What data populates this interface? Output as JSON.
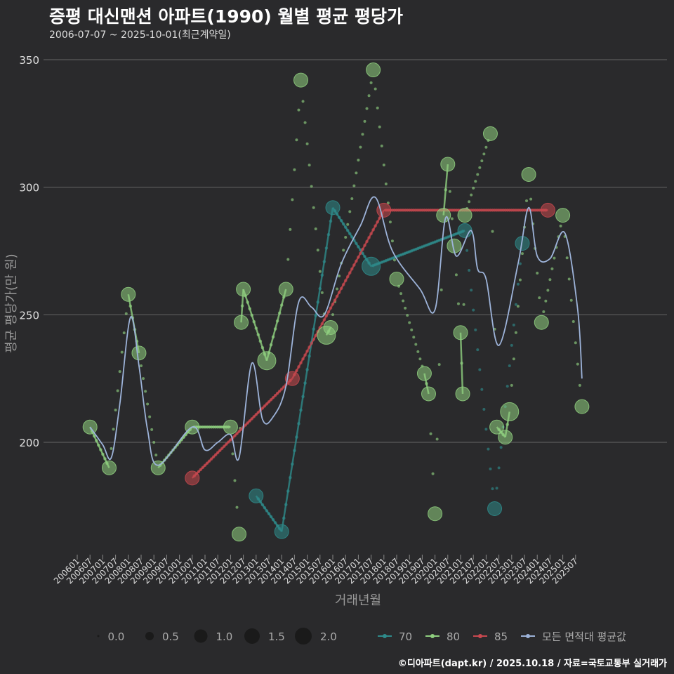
{
  "page": {
    "title": "증평 대신맨션 아파트(1990) 월별 평균 평당가",
    "subtitle": "2006-07-07 ~ 2025-10-01(최근계약일)",
    "caption": "©디아파트(dapt.kr) / 2025.10.18 / 자료=국토교통부 실거래가"
  },
  "colors": {
    "background": "#2a2a2c",
    "grid": "#6b6b6b",
    "area70": "#2e8b8b",
    "area80": "#8fcf7f",
    "area85": "#c8484f",
    "average": "#9db3d9"
  },
  "chart_data": {
    "type": "scatter",
    "title": "증평 대신맨션 아파트(1990) 월별 평균 평당가",
    "xlabel": "거래년월",
    "ylabel": "평균 평당가(만 원)",
    "xlim": [
      "2006-01",
      "2025-12"
    ],
    "ylim": [
      165,
      355
    ],
    "yticks": [
      200,
      250,
      300,
      350
    ],
    "xticks": [
      "200601",
      "200607",
      "200701",
      "200707",
      "200801",
      "200807",
      "200901",
      "200907",
      "201001",
      "201007",
      "201101",
      "201107",
      "201201",
      "201207",
      "201301",
      "201307",
      "201401",
      "201407",
      "201501",
      "201507",
      "201601",
      "201607",
      "201701",
      "201707",
      "201801",
      "201807",
      "201901",
      "201907",
      "202001",
      "202007",
      "202101",
      "202107",
      "202201",
      "202207",
      "202301",
      "202307",
      "202401",
      "202407",
      "202501",
      "202507"
    ],
    "size_legend": {
      "title": "",
      "values": [
        "0.0",
        "0.5",
        "1.0",
        "1.5",
        "2.0"
      ]
    },
    "series": [
      {
        "name": "70",
        "color": "#2e8b8b",
        "points": [
          {
            "x": "2013-01",
            "y": 179,
            "size": 1.0
          },
          {
            "x": "2014-01",
            "y": 165,
            "size": 1.0
          },
          {
            "x": "2016-01",
            "y": 292,
            "size": 1.0
          },
          {
            "x": "2017-07",
            "y": 269,
            "size": 1.5
          },
          {
            "x": "2021-03",
            "y": 283,
            "size": 1.0
          },
          {
            "x": "2022-05",
            "y": 174,
            "size": 1.0
          },
          {
            "x": "2023-06",
            "y": 278,
            "size": 1.0
          }
        ]
      },
      {
        "name": "80",
        "color": "#8fcf7f",
        "points": [
          {
            "x": "2006-07",
            "y": 206,
            "size": 1.0
          },
          {
            "x": "2007-04",
            "y": 190,
            "size": 1.0
          },
          {
            "x": "2008-01",
            "y": 258,
            "size": 1.0
          },
          {
            "x": "2008-06",
            "y": 235,
            "size": 1.0
          },
          {
            "x": "2009-03",
            "y": 190,
            "size": 1.0
          },
          {
            "x": "2010-07",
            "y": 206,
            "size": 1.0
          },
          {
            "x": "2012-01",
            "y": 206,
            "size": 1.0
          },
          {
            "x": "2012-05",
            "y": 164,
            "size": 1.0
          },
          {
            "x": "2012-06",
            "y": 247,
            "size": 1.0
          },
          {
            "x": "2012-07",
            "y": 260,
            "size": 1.0
          },
          {
            "x": "2013-06",
            "y": 232,
            "size": 1.5
          },
          {
            "x": "2014-03",
            "y": 260,
            "size": 1.0
          },
          {
            "x": "2014-10",
            "y": 342,
            "size": 1.0
          },
          {
            "x": "2015-10",
            "y": 242,
            "size": 1.5
          },
          {
            "x": "2015-12",
            "y": 245,
            "size": 1.0
          },
          {
            "x": "2017-08",
            "y": 346,
            "size": 1.0
          },
          {
            "x": "2018-07",
            "y": 264,
            "size": 1.0
          },
          {
            "x": "2019-08",
            "y": 227,
            "size": 1.0
          },
          {
            "x": "2019-10",
            "y": 219,
            "size": 1.0
          },
          {
            "x": "2020-01",
            "y": 172,
            "size": 1.0
          },
          {
            "x": "2020-05",
            "y": 289,
            "size": 1.0
          },
          {
            "x": "2020-07",
            "y": 309,
            "size": 1.0
          },
          {
            "x": "2020-10",
            "y": 277,
            "size": 1.0
          },
          {
            "x": "2021-01",
            "y": 243,
            "size": 1.0
          },
          {
            "x": "2021-02",
            "y": 219,
            "size": 1.0
          },
          {
            "x": "2021-03",
            "y": 289,
            "size": 1.0
          },
          {
            "x": "2022-03",
            "y": 321,
            "size": 1.0
          },
          {
            "x": "2022-06",
            "y": 206,
            "size": 1.0
          },
          {
            "x": "2022-10",
            "y": 202,
            "size": 1.0
          },
          {
            "x": "2022-12",
            "y": 212,
            "size": 1.5
          },
          {
            "x": "2023-09",
            "y": 305,
            "size": 1.0
          },
          {
            "x": "2024-03",
            "y": 247,
            "size": 1.0
          },
          {
            "x": "2025-01",
            "y": 289,
            "size": 1.0
          },
          {
            "x": "2025-10",
            "y": 214,
            "size": 1.0
          }
        ]
      },
      {
        "name": "85",
        "color": "#c8484f",
        "points": [
          {
            "x": "2010-07",
            "y": 186,
            "size": 1.0
          },
          {
            "x": "2014-06",
            "y": 225,
            "size": 1.0
          },
          {
            "x": "2018-01",
            "y": 291,
            "size": 1.0
          },
          {
            "x": "2024-06",
            "y": 291,
            "size": 1.0
          }
        ]
      },
      {
        "name": "모든 면적대 평균값",
        "color": "#9db3d9",
        "line": [
          {
            "x": "2006-07",
            "y": 206
          },
          {
            "x": "2007-01",
            "y": 199
          },
          {
            "x": "2007-05",
            "y": 194
          },
          {
            "x": "2007-09",
            "y": 215
          },
          {
            "x": "2008-02",
            "y": 249
          },
          {
            "x": "2008-06",
            "y": 230
          },
          {
            "x": "2008-10",
            "y": 205
          },
          {
            "x": "2009-03",
            "y": 191
          },
          {
            "x": "2010-07",
            "y": 206
          },
          {
            "x": "2011-01",
            "y": 197
          },
          {
            "x": "2011-07",
            "y": 200
          },
          {
            "x": "2012-01",
            "y": 203
          },
          {
            "x": "2012-05",
            "y": 194
          },
          {
            "x": "2012-11",
            "y": 231
          },
          {
            "x": "2013-04",
            "y": 209
          },
          {
            "x": "2013-09",
            "y": 210
          },
          {
            "x": "2014-03",
            "y": 222
          },
          {
            "x": "2014-09",
            "y": 255
          },
          {
            "x": "2015-03",
            "y": 253
          },
          {
            "x": "2015-09",
            "y": 250
          },
          {
            "x": "2016-05",
            "y": 270
          },
          {
            "x": "2017-02",
            "y": 285
          },
          {
            "x": "2017-09",
            "y": 296
          },
          {
            "x": "2018-05",
            "y": 275
          },
          {
            "x": "2019-06",
            "y": 260
          },
          {
            "x": "2020-01",
            "y": 252
          },
          {
            "x": "2020-06",
            "y": 288
          },
          {
            "x": "2020-11",
            "y": 273
          },
          {
            "x": "2021-06",
            "y": 283
          },
          {
            "x": "2021-09",
            "y": 268
          },
          {
            "x": "2022-01",
            "y": 264
          },
          {
            "x": "2022-07",
            "y": 238
          },
          {
            "x": "2023-04",
            "y": 270
          },
          {
            "x": "2023-09",
            "y": 292
          },
          {
            "x": "2024-01",
            "y": 273
          },
          {
            "x": "2024-07",
            "y": 272
          },
          {
            "x": "2025-02",
            "y": 282
          },
          {
            "x": "2025-08",
            "y": 252
          },
          {
            "x": "2025-10",
            "y": 225
          }
        ]
      }
    ],
    "legend": [
      "70",
      "80",
      "85",
      "모든 면적대 평균값"
    ]
  }
}
